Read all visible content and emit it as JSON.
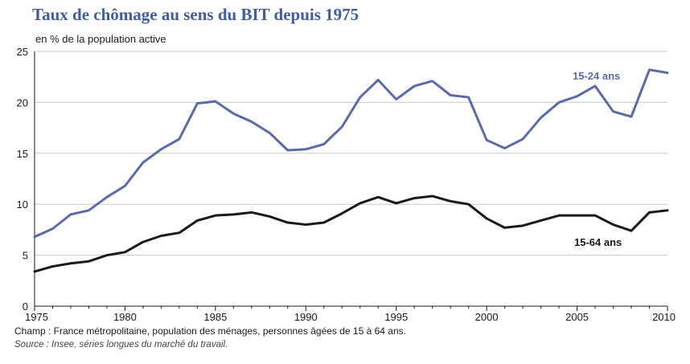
{
  "title": "Taux de chômage au sens du BIT depuis 1975",
  "unit_label": "en % de la population active",
  "notes": {
    "scope": "Champ : France métropolitaine, population des ménages, personnes âgées de 15 à 64 ans.",
    "source": "Source : Insee, séries longues du marché du travail."
  },
  "chart_data": {
    "type": "line",
    "title": "Taux de chômage au sens du BIT depuis 1975",
    "ylabel": "en % de la population active",
    "xlabel": "",
    "xlim": [
      1975,
      2010
    ],
    "ylim": [
      0,
      25
    ],
    "x_ticks": [
      1975,
      1980,
      1985,
      1990,
      1995,
      2000,
      2005,
      2010
    ],
    "y_ticks": [
      0,
      5,
      10,
      15,
      20,
      25
    ],
    "grid": "horizontal",
    "x": [
      1975,
      1976,
      1977,
      1978,
      1979,
      1980,
      1981,
      1982,
      1983,
      1984,
      1985,
      1986,
      1987,
      1988,
      1989,
      1990,
      1991,
      1992,
      1993,
      1994,
      1995,
      1996,
      1997,
      1998,
      1999,
      2000,
      2001,
      2002,
      2003,
      2004,
      2005,
      2006,
      2007,
      2008,
      2009,
      2010
    ],
    "series": [
      {
        "name": "15-24 ans",
        "color": "#5b6aa8",
        "values": [
          6.8,
          7.6,
          9.0,
          9.4,
          10.7,
          11.8,
          14.1,
          15.4,
          16.4,
          19.9,
          20.1,
          18.9,
          18.1,
          17.0,
          15.3,
          15.4,
          15.9,
          17.6,
          20.5,
          22.2,
          20.3,
          21.6,
          22.1,
          20.7,
          20.5,
          16.3,
          15.5,
          16.4,
          18.5,
          20.0,
          20.6,
          21.6,
          19.1,
          18.6,
          23.2,
          22.9
        ]
      },
      {
        "name": "15-64 ans",
        "color": "#1a1a1a",
        "values": [
          3.4,
          3.9,
          4.2,
          4.4,
          5.0,
          5.3,
          6.3,
          6.9,
          7.2,
          8.4,
          8.9,
          9.0,
          9.2,
          8.8,
          8.2,
          8.0,
          8.2,
          9.1,
          10.1,
          10.7,
          10.1,
          10.6,
          10.8,
          10.3,
          10.0,
          8.6,
          7.7,
          7.9,
          8.4,
          8.9,
          8.9,
          8.9,
          8.0,
          7.4,
          9.2,
          9.4
        ]
      }
    ]
  }
}
